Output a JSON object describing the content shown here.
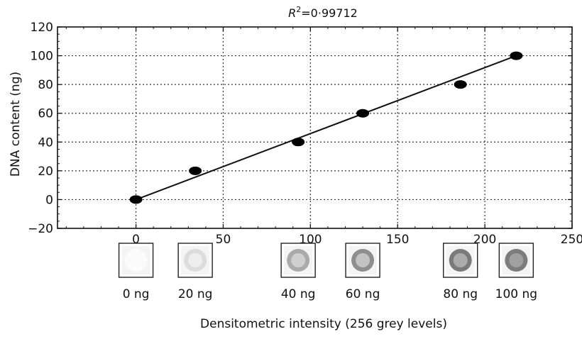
{
  "chart_data": {
    "type": "scatter",
    "title": "",
    "annotation": {
      "r2_symbol": "R",
      "r2_exponent": "2",
      "r2_value": "=0·99712"
    },
    "xlabel": "Densitometric intensity (256 grey levels)",
    "ylabel": "DNA content (ng)",
    "xlim": [
      -45,
      250
    ],
    "ylim": [
      -20,
      120
    ],
    "x_ticks": [
      0,
      50,
      100,
      150,
      200,
      250
    ],
    "y_ticks": [
      -20,
      0,
      20,
      40,
      60,
      80,
      100,
      120
    ],
    "x_tick_labels": [
      "0",
      "50",
      "100",
      "150",
      "200",
      "250"
    ],
    "y_tick_labels": [
      "−20",
      "0",
      "20",
      "40",
      "60",
      "80",
      "100",
      "120"
    ],
    "grid": true,
    "points": [
      {
        "x": 0,
        "y": 0
      },
      {
        "x": 34,
        "y": 20
      },
      {
        "x": 93,
        "y": 40
      },
      {
        "x": 130,
        "y": 60
      },
      {
        "x": 186,
        "y": 80
      },
      {
        "x": 218,
        "y": 100
      }
    ],
    "fit_line": {
      "x": [
        0,
        218
      ],
      "y": [
        0,
        100
      ]
    },
    "swatches": [
      {
        "label": "0 ng",
        "x": 0,
        "fill": "#fbfbfb",
        "ring": "#fbfbfb"
      },
      {
        "label": "20 ng",
        "x": 34,
        "fill": "#eeeeee",
        "ring": "#dcdcdc"
      },
      {
        "label": "40 ng",
        "x": 93,
        "fill": "#cfcfcf",
        "ring": "#aaaaaa"
      },
      {
        "label": "60 ng",
        "x": 130,
        "fill": "#c2c2c2",
        "ring": "#8e8e8e"
      },
      {
        "label": "80 ng",
        "x": 186,
        "fill": "#ababab",
        "ring": "#7a7a7a"
      },
      {
        "label": "100 ng",
        "x": 218,
        "fill": "#a0a0a0",
        "ring": "#7c7c7c"
      }
    ]
  }
}
